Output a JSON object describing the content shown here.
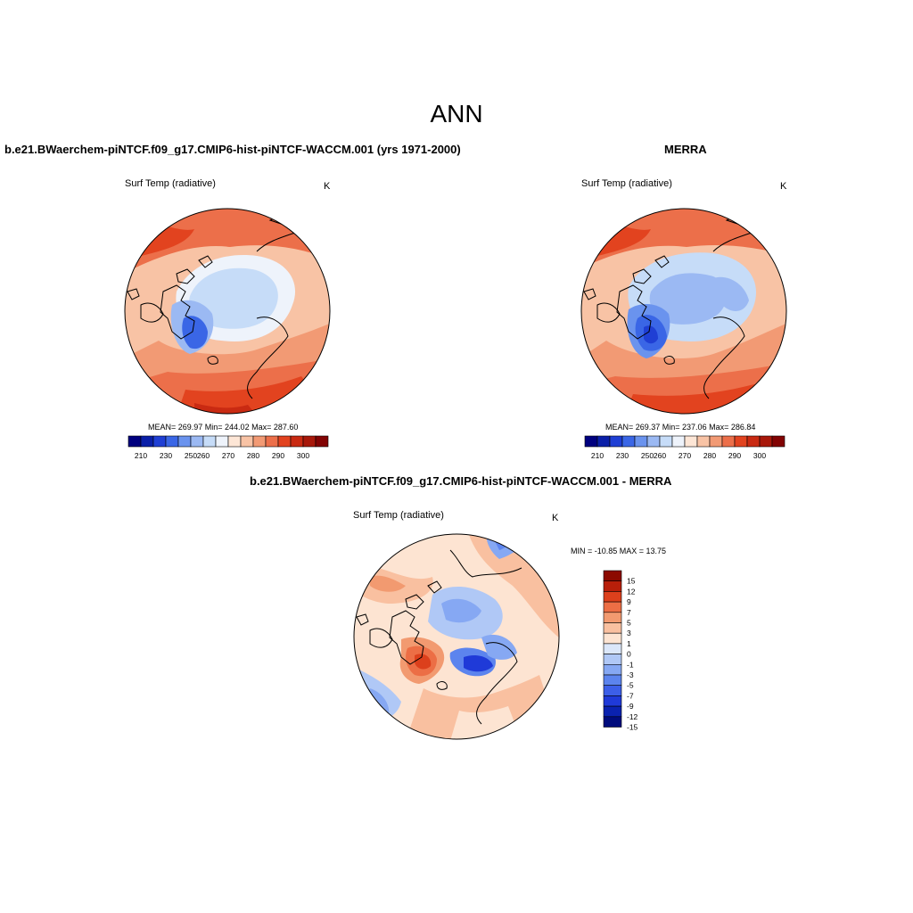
{
  "main_title": "ANN",
  "colors": {
    "abs_scale": [
      "#00007f",
      "#0a1fa8",
      "#1f3fd4",
      "#3a66e6",
      "#6a93ee",
      "#9bb9f3",
      "#c6dcf8",
      "#eef3fb",
      "#fde6d6",
      "#f8c3a5",
      "#f29a74",
      "#ec6f4a",
      "#e2431f",
      "#c92a12",
      "#a8180a",
      "#820303"
    ],
    "diff_scale": [
      "#000c7d",
      "#0a22b0",
      "#1f3ad8",
      "#3c5fe8",
      "#5c84ee",
      "#86a8f3",
      "#b0c8f6",
      "#dbe7fa",
      "#fde4d2",
      "#f9c0a0",
      "#f29a70",
      "#ec6e45",
      "#dc401c",
      "#b81f0a",
      "#8c0a00"
    ]
  },
  "panels": [
    {
      "id": "model",
      "title": "b.e21.BWaerchem-piNTCF.f09_g17.CMIP6-hist-piNTCF-WACCM.001 (yrs 1971-2000)",
      "variable": "Surf Temp (radiative)",
      "units": "K",
      "stats": "MEAN= 269.97  Min= 244.02  Max= 287.60",
      "colorbar_labels": [
        "210",
        "230",
        "250",
        "260",
        "270",
        "280",
        "290",
        "300"
      ]
    },
    {
      "id": "obs",
      "title": "MERRA",
      "variable": "Surf Temp (radiative)",
      "units": "K",
      "stats": "MEAN= 269.37  Min= 237.06  Max= 286.84",
      "colorbar_labels": [
        "210",
        "230",
        "250",
        "260",
        "270",
        "280",
        "290",
        "300"
      ]
    },
    {
      "id": "diff",
      "title": "b.e21.BWaerchem-piNTCF.f09_g17.CMIP6-hist-piNTCF-WACCM.001 - MERRA",
      "variable": "Surf Temp (radiative)",
      "units": "K",
      "stats": "MIN = -10.85 MAX =  13.75",
      "colorbar_labels": [
        "15",
        "12",
        "9",
        "7",
        "5",
        "3",
        "1",
        "0",
        "-1",
        "-3",
        "-5",
        "-7",
        "-9",
        "-12",
        "-15"
      ]
    }
  ]
}
